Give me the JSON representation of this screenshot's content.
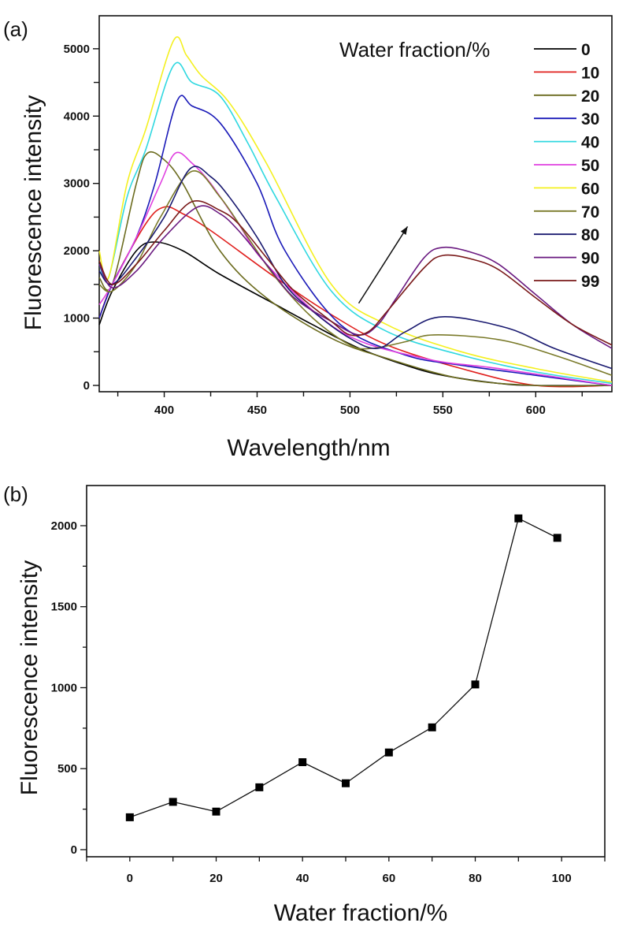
{
  "chart_data": [
    {
      "panel_label": "(a)",
      "type": "line",
      "title": "",
      "xlabel": "Wavelength/nm",
      "ylabel": "Fluorescence intensity",
      "xlim": [
        365,
        641
      ],
      "ylim": [
        0,
        5490
      ],
      "xticks": [
        400,
        450,
        500,
        550,
        600
      ],
      "yticks": [
        0,
        1000,
        2000,
        3000,
        4000,
        5000
      ],
      "grid": false,
      "legend": {
        "title": "Water fraction/%",
        "placement": "top-right"
      },
      "annotations": [
        {
          "type": "arrow",
          "from": [
            504.7,
            1220
          ],
          "to": [
            531,
            2360
          ]
        }
      ],
      "series": [
        {
          "name": "0",
          "color": "#000000",
          "x": [
            365,
            372,
            385,
            395,
            410,
            430,
            460,
            480,
            505,
            530,
            550,
            580,
            600,
            641
          ],
          "y": [
            900,
            1400,
            2000,
            2130,
            2000,
            1650,
            1200,
            900,
            550,
            300,
            150,
            30,
            0,
            0
          ]
        },
        {
          "name": "10",
          "color": "#e0201e",
          "x": [
            365,
            372,
            390,
            400,
            410,
            425,
            460,
            490,
            520,
            560,
            600,
            641
          ],
          "y": [
            1000,
            1500,
            2400,
            2650,
            2550,
            2300,
            1600,
            1050,
            600,
            250,
            0,
            0
          ]
        },
        {
          "name": "20",
          "color": "#6b6b1e",
          "x": [
            365,
            372,
            385,
            391,
            400,
            410,
            430,
            455,
            490,
            520,
            560,
            600,
            641
          ],
          "y": [
            1600,
            1500,
            3000,
            3450,
            3350,
            3000,
            2000,
            1300,
            700,
            400,
            100,
            0,
            0
          ]
        },
        {
          "name": "30",
          "color": "#1a1ab8",
          "x": [
            365,
            372,
            385,
            395,
            407,
            415,
            430,
            450,
            465,
            495,
            530,
            560,
            600,
            641
          ],
          "y": [
            1000,
            1500,
            2200,
            3000,
            4230,
            4150,
            3900,
            3000,
            2000,
            900,
            450,
            300,
            150,
            0
          ]
        },
        {
          "name": "40",
          "color": "#30d8e0",
          "x": [
            365,
            370,
            380,
            390,
            405,
            415,
            430,
            445,
            460,
            490,
            520,
            560,
            600,
            641
          ],
          "y": [
            1800,
            1600,
            2800,
            3500,
            4750,
            4500,
            4300,
            3600,
            2800,
            1400,
            800,
            450,
            200,
            30
          ]
        },
        {
          "name": "50",
          "color": "#e040e0",
          "x": [
            365,
            372,
            385,
            398,
            406,
            415,
            425,
            440,
            455,
            495,
            540,
            580,
            641
          ],
          "y": [
            1200,
            1500,
            2200,
            3000,
            3450,
            3300,
            3000,
            2400,
            1800,
            800,
            400,
            250,
            0
          ]
        },
        {
          "name": "60",
          "color": "#f4f020",
          "x": [
            365,
            370,
            380,
            390,
            405,
            412,
            420,
            435,
            455,
            490,
            520,
            560,
            600,
            641
          ],
          "y": [
            2000,
            1600,
            3000,
            3800,
            5120,
            4900,
            4600,
            4200,
            3300,
            1500,
            900,
            500,
            250,
            50
          ]
        },
        {
          "name": "70",
          "color": "#7a7a2a",
          "x": [
            365,
            372,
            385,
            398,
            415,
            430,
            445,
            460,
            480,
            500,
            512,
            530,
            545,
            580,
            610,
            641
          ],
          "y": [
            1500,
            1400,
            1800,
            2500,
            3180,
            2800,
            2200,
            1600,
            1000,
            600,
            550,
            650,
            750,
            680,
            450,
            150
          ]
        },
        {
          "name": "80",
          "color": "#1a1a70",
          "x": [
            365,
            372,
            385,
            400,
            414,
            425,
            435,
            450,
            465,
            480,
            500,
            515,
            530,
            550,
            585,
            610,
            641
          ],
          "y": [
            1700,
            1500,
            1900,
            2500,
            3220,
            3100,
            2800,
            2200,
            1500,
            1100,
            700,
            550,
            800,
            1020,
            850,
            550,
            250
          ]
        },
        {
          "name": "90",
          "color": "#6a1a80",
          "x": [
            365,
            372,
            385,
            400,
            418,
            430,
            440,
            455,
            470,
            490,
            505,
            515,
            525,
            540,
            550,
            565,
            580,
            600,
            620,
            641
          ],
          "y": [
            1800,
            1450,
            1700,
            2200,
            2650,
            2550,
            2300,
            1800,
            1300,
            950,
            750,
            900,
            1300,
            1900,
            2050,
            1980,
            1800,
            1350,
            900,
            550
          ]
        },
        {
          "name": "99",
          "color": "#7a1a1a",
          "x": [
            365,
            372,
            385,
            400,
            415,
            430,
            440,
            455,
            470,
            490,
            500,
            510,
            520,
            540,
            550,
            565,
            580,
            600,
            620,
            641
          ],
          "y": [
            1850,
            1500,
            1800,
            2300,
            2730,
            2600,
            2400,
            1900,
            1400,
            950,
            750,
            800,
            1100,
            1750,
            1930,
            1880,
            1720,
            1300,
            900,
            600
          ]
        }
      ]
    },
    {
      "panel_label": "(b)",
      "type": "line",
      "title": "",
      "xlabel": "Water fraction/%",
      "ylabel": "Fluorescence intensity",
      "xlim": [
        -10,
        110
      ],
      "ylim": [
        0,
        2248
      ],
      "xticks": [
        0,
        20,
        40,
        60,
        80,
        100
      ],
      "yticks": [
        0,
        500,
        1000,
        1500,
        2000
      ],
      "grid": false,
      "marker": "square",
      "series": [
        {
          "name": "Fluorescence intensity",
          "color": "#000000",
          "x": [
            0,
            10,
            20,
            30,
            40,
            50,
            60,
            70,
            80,
            90,
            99
          ],
          "y": [
            200,
            295,
            235,
            385,
            540,
            410,
            600,
            755,
            1020,
            2045,
            1925
          ]
        }
      ]
    }
  ]
}
